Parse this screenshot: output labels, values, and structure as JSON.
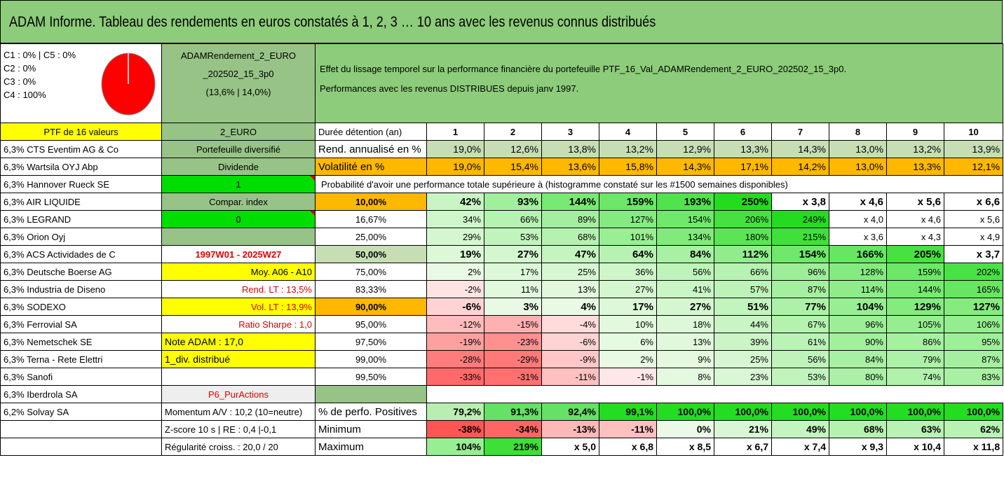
{
  "title": "ADAM Informe. Tableau des rendements en euros constatés à 1, 2, 3 … 10 ans avec les revenus connus distribués",
  "composition": [
    "C1 : 0% | C5 : 0%",
    "C2 : 0%",
    "C3 : 0%",
    "C4 : 100%"
  ],
  "pie_color": "#ff0000",
  "portfolio_box": [
    "ADAMRendement_2_EURO",
    "_202502_15_3p0",
    "(13,6% | 14,0%)"
  ],
  "info_lines": [
    "Effet du lissage temporel sur la performance financière du portefeuille PTF_16_Val_ADAMRendement_2_EURO_202502_15_3p0.",
    "Performances avec les revenus DISTRIBUES depuis janv 1997."
  ],
  "header": {
    "ptf": "PTF de 16 valeurs",
    "code": "2_EURO",
    "duree": "Durée détention (an)",
    "years": [
      "1",
      "2",
      "3",
      "4",
      "5",
      "6",
      "7",
      "8",
      "9",
      "10"
    ]
  },
  "rows": [
    {
      "stock": "6,3% CTS Eventim AG & Co",
      "mid": "Portefeuille diversifié",
      "label": "Rend. annualisé en %",
      "vals": [
        "19,0%",
        "12,6%",
        "13,8%",
        "13,2%",
        "12,9%",
        "13,3%",
        "14,3%",
        "13,0%",
        "13,2%",
        "13,9%"
      ]
    },
    {
      "stock": "6,3% Wartsila OYJ Abp",
      "mid": "Dividende",
      "label": "Volatilité en %",
      "vals": [
        "19,0%",
        "15,4%",
        "13,6%",
        "15,8%",
        "14,3%",
        "17,1%",
        "14,2%",
        "13,0%",
        "13,3%",
        "12,1%"
      ]
    },
    {
      "stock": "6,3% Hannover Rueck SE",
      "mid": "1",
      "label": "Probabilité d'avoir une performance totale supérieure à (histogramme constaté sur les #1500 semaines disponibles)"
    },
    {
      "stock": "6,3% AIR LIQUIDE",
      "mid": "Compar. index",
      "label": "10,00%",
      "vals": [
        "42%",
        "93%",
        "144%",
        "159%",
        "193%",
        "250%",
        "x 3,8",
        "x 4,6",
        "x 5,6",
        "x 6,6"
      ]
    },
    {
      "stock": "6,3% LEGRAND",
      "mid": "0",
      "label": "16,67%",
      "vals": [
        "34%",
        "66%",
        "89%",
        "127%",
        "154%",
        "206%",
        "249%",
        "x 4,0",
        "x 4,6",
        "x 5,6"
      ]
    },
    {
      "stock": "6,3% Orion Oyj",
      "mid": "",
      "label": "25,00%",
      "vals": [
        "29%",
        "53%",
        "68%",
        "101%",
        "134%",
        "180%",
        "215%",
        "x 3,6",
        "x 4,3",
        "x 4,9"
      ]
    },
    {
      "stock": "6,3% ACS Actividades de C",
      "mid": "1997W01 - 2025W27",
      "label": "50,00%",
      "vals": [
        "19%",
        "27%",
        "47%",
        "64%",
        "84%",
        "112%",
        "154%",
        "166%",
        "205%",
        "x 3,7"
      ]
    },
    {
      "stock": "6,3% Deutsche Boerse AG",
      "mid": "Moy. A06 - A10",
      "label": "75,00%",
      "vals": [
        "2%",
        "17%",
        "25%",
        "36%",
        "56%",
        "66%",
        "96%",
        "128%",
        "159%",
        "202%"
      ]
    },
    {
      "stock": "6,3% Industria de Diseno",
      "mid": "Rend. LT : 13,5%",
      "label": "83,33%",
      "vals": [
        "-2%",
        "11%",
        "13%",
        "27%",
        "41%",
        "57%",
        "87%",
        "114%",
        "144%",
        "165%"
      ]
    },
    {
      "stock": "6,3% SODEXO",
      "mid": "Vol. LT : 13,9%",
      "label": "90,00%",
      "vals": [
        "-6%",
        "3%",
        "4%",
        "17%",
        "27%",
        "51%",
        "77%",
        "104%",
        "129%",
        "127%"
      ]
    },
    {
      "stock": "6,3% Ferrovial SA",
      "mid": "Ratio Sharpe : 1,0",
      "label": "95,00%",
      "vals": [
        "-12%",
        "-15%",
        "-4%",
        "10%",
        "18%",
        "44%",
        "67%",
        "96%",
        "105%",
        "106%"
      ]
    },
    {
      "stock": "6,3% Nemetschek SE",
      "mid": "Note ADAM : 17,0",
      "label": "97,50%",
      "vals": [
        "-19%",
        "-23%",
        "-6%",
        "6%",
        "13%",
        "39%",
        "61%",
        "90%",
        "86%",
        "95%"
      ]
    },
    {
      "stock": "6,3% Terna - Rete Elettri",
      "mid": "1_div. distribué",
      "label": "99,00%",
      "vals": [
        "-28%",
        "-29%",
        "-9%",
        "2%",
        "9%",
        "25%",
        "56%",
        "84%",
        "79%",
        "87%"
      ]
    },
    {
      "stock": "6,3% Sanofi",
      "mid": "",
      "label": "99,50%",
      "vals": [
        "-33%",
        "-31%",
        "-11%",
        "-1%",
        "8%",
        "23%",
        "53%",
        "80%",
        "74%",
        "83%"
      ]
    },
    {
      "stock": "6,3% Iberdrola SA",
      "mid": "P6_PurActions",
      "label": ""
    },
    {
      "stock": "6,2% Solvay SA",
      "mid": "Momentum A/V : 10,2 (10=neutre)",
      "label": "% de perfo. Positives",
      "vals": [
        "79,2%",
        "91,3%",
        "92,4%",
        "99,1%",
        "100,0%",
        "100,0%",
        "100,0%",
        "100,0%",
        "100,0%",
        "100,0%"
      ]
    },
    {
      "stock": "",
      "mid": "Z-score 10 s | RE : 0,4 |-0,1",
      "label": "Minimum",
      "vals": [
        "-38%",
        "-34%",
        "-13%",
        "-11%",
        "0%",
        "21%",
        "49%",
        "68%",
        "63%",
        "62%"
      ]
    },
    {
      "stock": "",
      "mid": "Régularité croiss. : 20,0 / 20",
      "label": "Maximum",
      "vals": [
        "104%",
        "219%",
        "x 5,0",
        "x 6,8",
        "x 8,5",
        "x 6,7",
        "x 7,4",
        "x 9,3",
        "x 10,4",
        "x 11,8"
      ]
    }
  ]
}
